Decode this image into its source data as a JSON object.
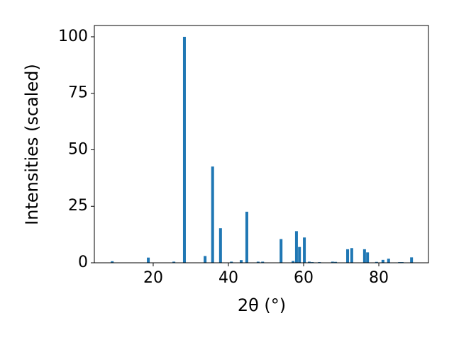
{
  "chart_data": {
    "type": "bar",
    "x_label": "2θ (°)",
    "y_label": "Intensities (scaled)",
    "x": [
      9.1,
      18.7,
      25.5,
      28.3,
      33.8,
      35.8,
      37.9,
      40.8,
      43.4,
      44.9,
      47.9,
      49.1,
      54.0,
      57.2,
      58.1,
      58.9,
      60.2,
      61.5,
      62.3,
      64.2,
      67.7,
      68.5,
      71.7,
      72.8,
      76.2,
      77.0,
      79.4,
      81.1,
      82.6,
      85.5,
      86.2,
      88.7
    ],
    "values": [
      0.7,
      2.3,
      0.5,
      100,
      3,
      42.6,
      15.3,
      0.5,
      1.2,
      22.6,
      0.5,
      0.5,
      10.5,
      0.8,
      14,
      7,
      11.2,
      0.5,
      0.3,
      0.3,
      0.5,
      0.4,
      6,
      6.5,
      6,
      4.6,
      0.4,
      1.3,
      1.8,
      0.3,
      0.3,
      2.4
    ],
    "color": "#1f77b4",
    "xlim": [
      4.35,
      93.2
    ],
    "xticks": [
      20,
      40,
      60,
      80
    ],
    "ylim": [
      0,
      105
    ],
    "yticks": [
      0,
      25,
      50,
      75,
      100
    ],
    "grid": false
  }
}
